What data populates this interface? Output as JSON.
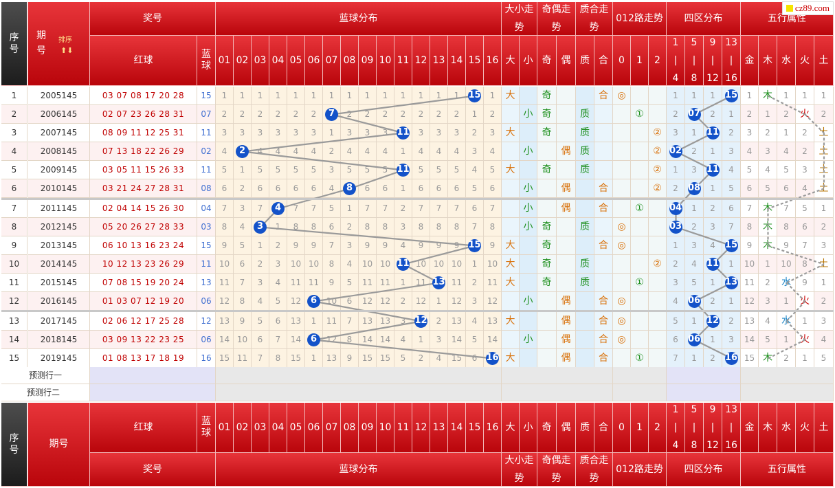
{
  "logo_text": "cz89.com",
  "header": {
    "seq_label": "序号",
    "period_label": "期号",
    "sort_label": "排序",
    "prize_label": "奖号",
    "red_label": "红球",
    "blue_label": "蓝球",
    "blue_dist_label": "蓝球分布",
    "size_label": "大小走势",
    "odd_label": "奇偶走势",
    "prime_label": "质合走势",
    "mod_label": "012路走势",
    "zone_label": "四区分布",
    "wuxing_label": "五行属性",
    "blue_numbers": [
      "01",
      "02",
      "03",
      "04",
      "05",
      "06",
      "07",
      "08",
      "09",
      "10",
      "11",
      "12",
      "13",
      "14",
      "15",
      "16"
    ],
    "size_cols": [
      "大",
      "小"
    ],
    "odd_cols": [
      "奇",
      "偶"
    ],
    "prime_cols": [
      "质",
      "合"
    ],
    "mod_cols": [
      "0",
      "1",
      "2"
    ],
    "zone_cols": [
      [
        "1",
        "|",
        "4"
      ],
      [
        "5",
        "|",
        "8"
      ],
      [
        "9",
        "|",
        "12"
      ],
      [
        "13",
        "|",
        "16"
      ]
    ],
    "wuxing_cols": [
      "金",
      "木",
      "水",
      "火",
      "土"
    ]
  },
  "predict_rows": [
    "预测行一",
    "预测行二"
  ],
  "rows": [
    {
      "seq": "1",
      "period": "2005145",
      "reds": "03 07 08 17 20 28",
      "blue": "15",
      "miss": [
        "1",
        "1",
        "1",
        "1",
        "1",
        "1",
        "1",
        "1",
        "1",
        "1",
        "1",
        "1",
        "1",
        "1",
        "15",
        "1"
      ],
      "size": "大",
      "odd": "奇",
      "prime": "合",
      "mod": "◎",
      "mod_idx": 0,
      "zone": [
        "1",
        "1",
        "1",
        "15"
      ],
      "wx": [
        "1",
        "木",
        "1",
        "1",
        "1"
      ],
      "wx_idx": 1
    },
    {
      "seq": "2",
      "period": "2006145",
      "reds": "02 07 23 26 28 31",
      "blue": "07",
      "miss": [
        "2",
        "2",
        "2",
        "2",
        "2",
        "2",
        "7",
        "2",
        "2",
        "2",
        "2",
        "2",
        "2",
        "2",
        "1",
        "2"
      ],
      "size": "小",
      "odd": "奇",
      "prime": "质",
      "mod": "①",
      "mod_idx": 1,
      "zone": [
        "2",
        "07",
        "2",
        "1"
      ],
      "wx": [
        "2",
        "1",
        "2",
        "火",
        "2"
      ],
      "wx_idx": 3
    },
    {
      "seq": "3",
      "period": "2007145",
      "reds": "08 09 11 12 25 31",
      "blue": "11",
      "miss": [
        "3",
        "3",
        "3",
        "3",
        "3",
        "3",
        "1",
        "3",
        "3",
        "3",
        "11",
        "3",
        "3",
        "3",
        "2",
        "3"
      ],
      "size": "大",
      "odd": "奇",
      "prime": "质",
      "mod": "②",
      "mod_idx": 2,
      "zone": [
        "3",
        "1",
        "11",
        "2"
      ],
      "wx": [
        "3",
        "2",
        "1",
        "2",
        "土"
      ],
      "wx_idx": 4
    },
    {
      "seq": "4",
      "period": "2008145",
      "reds": "07 13 18 22 26 29",
      "blue": "02",
      "miss": [
        "4",
        "2",
        "4",
        "4",
        "4",
        "4",
        "2",
        "4",
        "4",
        "4",
        "1",
        "4",
        "4",
        "4",
        "3",
        "4"
      ],
      "size": "小",
      "odd": "偶",
      "prime": "质",
      "mod": "②",
      "mod_idx": 2,
      "zone": [
        "02",
        "2",
        "1",
        "3"
      ],
      "wx": [
        "4",
        "3",
        "4",
        "2",
        "土"
      ],
      "wx_idx": 4
    },
    {
      "seq": "5",
      "period": "2009145",
      "reds": "03 05 11 15 26 33",
      "blue": "11",
      "miss": [
        "5",
        "1",
        "5",
        "5",
        "5",
        "5",
        "3",
        "5",
        "5",
        "5",
        "11",
        "5",
        "5",
        "5",
        "4",
        "5"
      ],
      "size": "大",
      "odd": "奇",
      "prime": "质",
      "mod": "②",
      "mod_idx": 2,
      "zone": [
        "1",
        "3",
        "11",
        "4"
      ],
      "wx": [
        "5",
        "4",
        "5",
        "3",
        "土"
      ],
      "wx_idx": 4
    },
    {
      "seq": "6",
      "period": "2010145",
      "reds": "03 21 24 27 28 31",
      "blue": "08",
      "miss": [
        "6",
        "2",
        "6",
        "6",
        "6",
        "6",
        "4",
        "8",
        "6",
        "6",
        "1",
        "6",
        "6",
        "6",
        "5",
        "6"
      ],
      "size": "小",
      "odd": "偶",
      "prime": "合",
      "mod": "②",
      "mod_idx": 2,
      "zone": [
        "2",
        "08",
        "1",
        "5"
      ],
      "wx": [
        "6",
        "5",
        "6",
        "4",
        "土"
      ],
      "wx_idx": 4
    },
    {
      "seq": "7",
      "period": "2011145",
      "reds": "02 04 14 15 26 30",
      "blue": "04",
      "miss": [
        "7",
        "3",
        "7",
        "4",
        "7",
        "7",
        "5",
        "1",
        "7",
        "7",
        "2",
        "7",
        "7",
        "7",
        "6",
        "7"
      ],
      "size": "小",
      "odd": "偶",
      "prime": "合",
      "mod": "①",
      "mod_idx": 1,
      "zone": [
        "04",
        "1",
        "2",
        "6"
      ],
      "wx": [
        "7",
        "木",
        "7",
        "5",
        "1"
      ],
      "wx_idx": 1
    },
    {
      "seq": "8",
      "period": "2012145",
      "reds": "05 20 26 27 28 33",
      "blue": "03",
      "miss": [
        "8",
        "4",
        "3",
        "1",
        "8",
        "8",
        "6",
        "2",
        "8",
        "8",
        "3",
        "8",
        "8",
        "8",
        "7",
        "8"
      ],
      "size": "小",
      "odd": "奇",
      "prime": "质",
      "mod": "◎",
      "mod_idx": 0,
      "zone": [
        "03",
        "2",
        "3",
        "7"
      ],
      "wx": [
        "8",
        "木",
        "8",
        "6",
        "2"
      ],
      "wx_idx": 1
    },
    {
      "seq": "9",
      "period": "2013145",
      "reds": "06 10 13 16 23 24",
      "blue": "15",
      "miss": [
        "9",
        "5",
        "1",
        "2",
        "9",
        "9",
        "7",
        "3",
        "9",
        "9",
        "4",
        "9",
        "9",
        "9",
        "15",
        "9"
      ],
      "size": "大",
      "odd": "奇",
      "prime": "合",
      "mod": "◎",
      "mod_idx": 0,
      "zone": [
        "1",
        "3",
        "4",
        "15"
      ],
      "wx": [
        "9",
        "木",
        "9",
        "7",
        "3"
      ],
      "wx_idx": 1
    },
    {
      "seq": "10",
      "period": "2014145",
      "reds": "10 12 13 23 26 29",
      "blue": "11",
      "miss": [
        "10",
        "6",
        "2",
        "3",
        "10",
        "10",
        "8",
        "4",
        "10",
        "10",
        "11",
        "10",
        "10",
        "10",
        "1",
        "10"
      ],
      "size": "大",
      "odd": "奇",
      "prime": "质",
      "mod": "②",
      "mod_idx": 2,
      "zone": [
        "2",
        "4",
        "11",
        "1"
      ],
      "wx": [
        "10",
        "1",
        "10",
        "8",
        "土"
      ],
      "wx_idx": 4
    },
    {
      "seq": "11",
      "period": "2015145",
      "reds": "07 08 15 19 20 24",
      "blue": "13",
      "miss": [
        "11",
        "7",
        "3",
        "4",
        "11",
        "11",
        "9",
        "5",
        "11",
        "11",
        "1",
        "11",
        "13",
        "11",
        "2",
        "11"
      ],
      "size": "大",
      "odd": "奇",
      "prime": "质",
      "mod": "①",
      "mod_idx": 1,
      "zone": [
        "3",
        "5",
        "1",
        "13"
      ],
      "wx": [
        "11",
        "2",
        "水",
        "9",
        "1"
      ],
      "wx_idx": 2
    },
    {
      "seq": "12",
      "period": "2016145",
      "reds": "01 03 07 12 19 20",
      "blue": "06",
      "miss": [
        "12",
        "8",
        "4",
        "5",
        "12",
        "6",
        "10",
        "6",
        "12",
        "12",
        "2",
        "12",
        "1",
        "12",
        "3",
        "12"
      ],
      "size": "小",
      "odd": "偶",
      "prime": "合",
      "mod": "◎",
      "mod_idx": 0,
      "zone": [
        "4",
        "06",
        "2",
        "1"
      ],
      "wx": [
        "12",
        "3",
        "1",
        "火",
        "2"
      ],
      "wx_idx": 3
    },
    {
      "seq": "13",
      "period": "2017145",
      "reds": "02 06 12 17 25 28",
      "blue": "12",
      "miss": [
        "13",
        "9",
        "5",
        "6",
        "13",
        "1",
        "11",
        "7",
        "13",
        "13",
        "3",
        "12",
        "2",
        "13",
        "4",
        "13"
      ],
      "size": "大",
      "odd": "偶",
      "prime": "合",
      "mod": "◎",
      "mod_idx": 0,
      "zone": [
        "5",
        "1",
        "12",
        "2"
      ],
      "wx": [
        "13",
        "4",
        "水",
        "1",
        "3"
      ],
      "wx_idx": 2
    },
    {
      "seq": "14",
      "period": "2018145",
      "reds": "03 09 13 22 23 25",
      "blue": "06",
      "miss": [
        "14",
        "10",
        "6",
        "7",
        "14",
        "6",
        "12",
        "8",
        "14",
        "14",
        "4",
        "1",
        "3",
        "14",
        "5",
        "14"
      ],
      "size": "小",
      "odd": "偶",
      "prime": "合",
      "mod": "◎",
      "mod_idx": 0,
      "zone": [
        "6",
        "06",
        "1",
        "3"
      ],
      "wx": [
        "14",
        "5",
        "1",
        "火",
        "4"
      ],
      "wx_idx": 3
    },
    {
      "seq": "15",
      "period": "2019145",
      "reds": "01 08 13 17 18 19",
      "blue": "16",
      "miss": [
        "15",
        "11",
        "7",
        "8",
        "15",
        "1",
        "13",
        "9",
        "15",
        "15",
        "5",
        "2",
        "4",
        "15",
        "6",
        "16"
      ],
      "size": "大",
      "odd": "偶",
      "prime": "合",
      "mod": "①",
      "mod_idx": 1,
      "zone": [
        "7",
        "1",
        "2",
        "16"
      ],
      "wx": [
        "15",
        "木",
        "2",
        "1",
        "5"
      ],
      "wx_idx": 1
    }
  ]
}
